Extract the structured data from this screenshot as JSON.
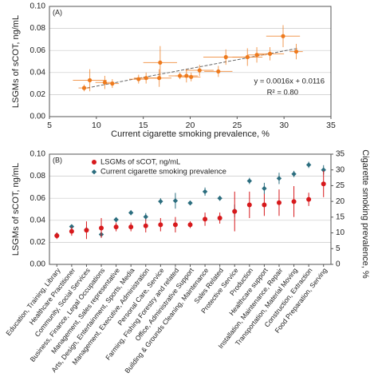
{
  "chart_data": [
    {
      "type": "scatter",
      "panel_label": "(A)",
      "xlabel": "Current cigarette smoking prevalence, %",
      "ylabel": "LSGMs of sCOT, ng/mL",
      "xlim": [
        5,
        35
      ],
      "ylim": [
        0,
        0.1
      ],
      "xticks": [
        5,
        10,
        15,
        20,
        25,
        30,
        35
      ],
      "yticks": [
        0.0,
        0.02,
        0.04,
        0.06,
        0.08,
        0.1
      ],
      "ytick_labels": [
        "0.00",
        "0.02",
        "0.04",
        "0.06",
        "0.08",
        "0.10"
      ],
      "grid": "horizontal",
      "equation": "y = 0.0016x + 0.0116",
      "r_squared": "R² = 0.80",
      "trendline": {
        "slope": 0.0016,
        "intercept": 0.0116,
        "x_range": [
          8.5,
          31.5
        ]
      },
      "point_color": "#ee7a1d",
      "points": [
        {
          "x": 8.7,
          "y": 0.026,
          "xerr": 0.6,
          "yerr": 0.003
        },
        {
          "x": 9.3,
          "y": 0.033,
          "xerr": 1.8,
          "yerr": 0.01
        },
        {
          "x": 10.9,
          "y": 0.031,
          "xerr": 1.0,
          "yerr": 0.006
        },
        {
          "x": 11.7,
          "y": 0.03,
          "xerr": 0.7,
          "yerr": 0.004
        },
        {
          "x": 14.5,
          "y": 0.034,
          "xerr": 1.0,
          "yerr": 0.004
        },
        {
          "x": 15.3,
          "y": 0.035,
          "xerr": 1.3,
          "yerr": 0.005
        },
        {
          "x": 16.8,
          "y": 0.049,
          "xerr": 1.8,
          "yerr": 0.015
        },
        {
          "x": 16.7,
          "y": 0.035,
          "xerr": 1.3,
          "yerr": 0.008
        },
        {
          "x": 18.9,
          "y": 0.037,
          "xerr": 1.2,
          "yerr": 0.003
        },
        {
          "x": 19.6,
          "y": 0.037,
          "xerr": 1.2,
          "yerr": 0.006
        },
        {
          "x": 20.1,
          "y": 0.036,
          "xerr": 1.0,
          "yerr": 0.004
        },
        {
          "x": 21.0,
          "y": 0.042,
          "xerr": 1.5,
          "yerr": 0.005
        },
        {
          "x": 23.0,
          "y": 0.041,
          "xerr": 1.5,
          "yerr": 0.005
        },
        {
          "x": 23.8,
          "y": 0.054,
          "xerr": 2.4,
          "yerr": 0.007
        },
        {
          "x": 26.1,
          "y": 0.054,
          "xerr": 1.6,
          "yerr": 0.008
        },
        {
          "x": 27.1,
          "y": 0.056,
          "xerr": 1.0,
          "yerr": 0.007
        },
        {
          "x": 28.5,
          "y": 0.057,
          "xerr": 1.5,
          "yerr": 0.006
        },
        {
          "x": 29.9,
          "y": 0.073,
          "xerr": 1.8,
          "yerr": 0.01
        },
        {
          "x": 31.3,
          "y": 0.059,
          "xerr": 0.7,
          "yerr": 0.007
        }
      ]
    },
    {
      "type": "scatter",
      "panel_label": "(B)",
      "ylabel": "LSGMs of sCOT, ng/mL",
      "ylabel_right": "Cigarette smoking prevalence, %",
      "ylim": [
        0,
        0.1
      ],
      "yticks": [
        0.0,
        0.02,
        0.04,
        0.06,
        0.08,
        0.1
      ],
      "ytick_labels": [
        "0.00",
        "0.02",
        "0.04",
        "0.06",
        "0.08",
        "0.10"
      ],
      "ylim_right": [
        0,
        35
      ],
      "yticks_right": [
        "0",
        "5",
        "10",
        "15",
        "20",
        "25",
        "30",
        "35"
      ],
      "grid": "horizontal",
      "legend_position": "top-left",
      "categories": [
        "Education, Training, Library",
        "Healthcare Practitioner",
        "Community, Social Services",
        "Business, Finance, Legal Occupations",
        "Management, Sales representative",
        "Arts, Design, Entertainment, Sports, Media",
        "Management, Executive, Administration",
        "Personal Care, Service",
        "Farming, Fishing Forestry and related",
        "Office, Administrative Support",
        "Building & Grounds Cleaning, Maintenance",
        "Sales Related",
        "Protective Service",
        "Production",
        "Healthcare support",
        "Installation, Maintenance, Repair",
        "Transportation, Material Moving",
        "Construction, Extraction",
        "Food Preparation, Serving"
      ],
      "series": [
        {
          "name": "LSGMs of sCOT, ng/mL",
          "color": "#d7191c",
          "axis": "left",
          "values": [
            0.026,
            0.03,
            0.031,
            0.033,
            0.034,
            0.034,
            0.035,
            0.036,
            0.036,
            0.036,
            0.041,
            0.042,
            0.048,
            0.054,
            0.054,
            0.056,
            0.057,
            0.059,
            0.073
          ],
          "errors": [
            0.003,
            0.004,
            0.008,
            0.009,
            0.004,
            0.004,
            0.006,
            0.006,
            0.007,
            0.003,
            0.006,
            0.005,
            0.018,
            0.012,
            0.01,
            0.012,
            0.014,
            0.006,
            0.012
          ]
        },
        {
          "name": "Current cigarette smoking prevalence",
          "color": "#2c6e7f",
          "axis": "right",
          "values": [
            9.3,
            12.0,
            11.0,
            9.5,
            14.2,
            16.4,
            15.1,
            20.0,
            20.2,
            19.5,
            23.1,
            21.0,
            17.0,
            26.5,
            24.1,
            27.3,
            28.7,
            31.6,
            30.0
          ],
          "errors": [
            0.6,
            0.6,
            0.9,
            1.0,
            0.8,
            0.8,
            1.2,
            1.0,
            2.5,
            0.6,
            1.3,
            0.8,
            2.0,
            1.0,
            1.8,
            1.8,
            1.0,
            1.0,
            1.5
          ]
        }
      ]
    }
  ]
}
